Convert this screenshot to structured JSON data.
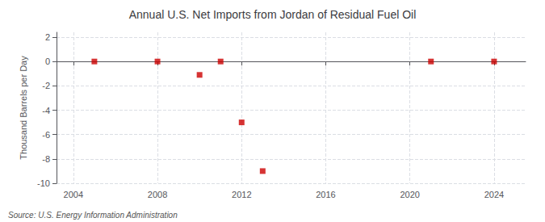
{
  "chart_data": {
    "type": "scatter",
    "title": "Annual U.S. Net Imports from Jordan of Residual Fuel Oil",
    "ylabel": "Thousand Barrels per Day",
    "annotations": [
      "Source: U.S. Energy Information Administration"
    ],
    "x": [
      2005,
      2008,
      2010,
      2011,
      2012,
      2013,
      2021,
      2024
    ],
    "values": [
      0,
      0,
      -1.1,
      0,
      -5.0,
      -9.0,
      0,
      0
    ],
    "color": "#cc0000",
    "marker": "square",
    "xlim": [
      2003.2,
      2025.5
    ],
    "xticks": [
      2004,
      2008,
      2012,
      2016,
      2020,
      2024
    ],
    "ylim": [
      -10,
      2.4
    ],
    "yticks": [
      -10,
      -8,
      -6,
      -4,
      -2,
      0,
      2
    ],
    "grid": true
  }
}
